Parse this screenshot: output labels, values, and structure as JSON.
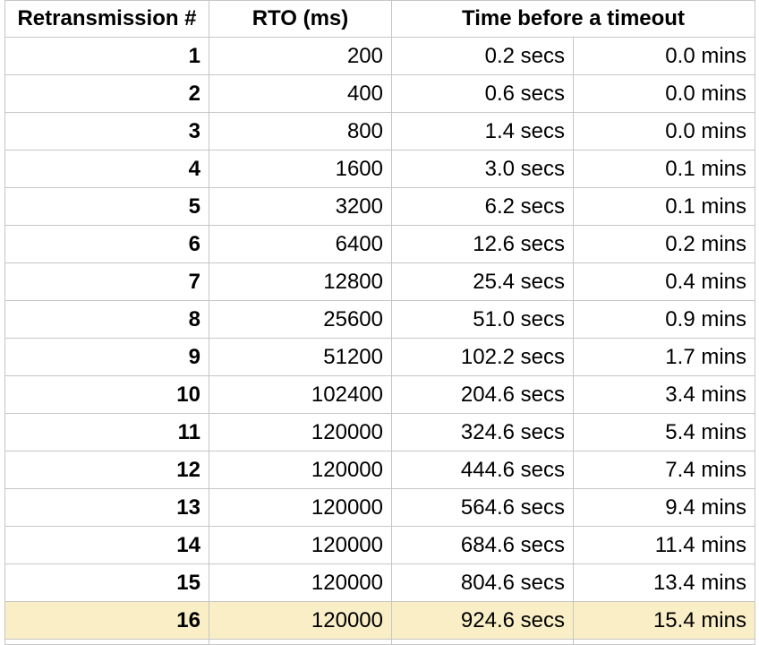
{
  "table": {
    "headers": {
      "col1": "Retransmission #",
      "col2": "RTO (ms)",
      "col34": "Time before a timeout"
    },
    "rows": [
      {
        "n": "1",
        "rto": "200",
        "secs": "0.2 secs",
        "mins": "0.0 mins",
        "highlighted": false
      },
      {
        "n": "2",
        "rto": "400",
        "secs": "0.6 secs",
        "mins": "0.0 mins",
        "highlighted": false
      },
      {
        "n": "3",
        "rto": "800",
        "secs": "1.4 secs",
        "mins": "0.0 mins",
        "highlighted": false
      },
      {
        "n": "4",
        "rto": "1600",
        "secs": "3.0 secs",
        "mins": "0.1 mins",
        "highlighted": false
      },
      {
        "n": "5",
        "rto": "3200",
        "secs": "6.2 secs",
        "mins": "0.1 mins",
        "highlighted": false
      },
      {
        "n": "6",
        "rto": "6400",
        "secs": "12.6 secs",
        "mins": "0.2 mins",
        "highlighted": false
      },
      {
        "n": "7",
        "rto": "12800",
        "secs": "25.4 secs",
        "mins": "0.4 mins",
        "highlighted": false
      },
      {
        "n": "8",
        "rto": "25600",
        "secs": "51.0 secs",
        "mins": "0.9 mins",
        "highlighted": false
      },
      {
        "n": "9",
        "rto": "51200",
        "secs": "102.2 secs",
        "mins": "1.7 mins",
        "highlighted": false
      },
      {
        "n": "10",
        "rto": "102400",
        "secs": "204.6 secs",
        "mins": "3.4 mins",
        "highlighted": false
      },
      {
        "n": "11",
        "rto": "120000",
        "secs": "324.6 secs",
        "mins": "5.4 mins",
        "highlighted": false
      },
      {
        "n": "12",
        "rto": "120000",
        "secs": "444.6 secs",
        "mins": "7.4 mins",
        "highlighted": false
      },
      {
        "n": "13",
        "rto": "120000",
        "secs": "564.6 secs",
        "mins": "9.4 mins",
        "highlighted": false
      },
      {
        "n": "14",
        "rto": "120000",
        "secs": "684.6 secs",
        "mins": "11.4 mins",
        "highlighted": false
      },
      {
        "n": "15",
        "rto": "120000",
        "secs": "804.6 secs",
        "mins": "13.4 mins",
        "highlighted": false
      },
      {
        "n": "16",
        "rto": "120000",
        "secs": "924.6 secs",
        "mins": "15.4 mins",
        "highlighted": true
      }
    ],
    "highlighted_row": "16",
    "colors": {
      "highlight": "#f9eec6",
      "gridline": "#c6c6c6",
      "text": "#000000",
      "background": "#ffffff"
    }
  }
}
